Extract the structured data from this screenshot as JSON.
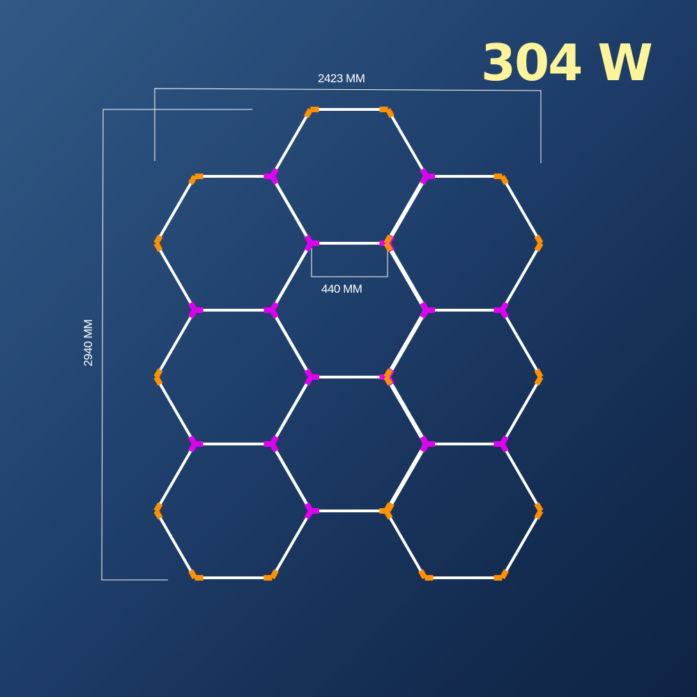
{
  "power": "304 W",
  "dimensions": {
    "width": "2423 MM",
    "height": "2940 MM",
    "segment": "440 MM"
  },
  "colors": {
    "tube": "#ffffff",
    "inner_connector": "#e000f0",
    "outer_connector": "#ff9000",
    "power_text": "#fdf49a"
  },
  "layout": {
    "hexagons": 9,
    "columns": 3,
    "hexagons_per_column": 3
  }
}
